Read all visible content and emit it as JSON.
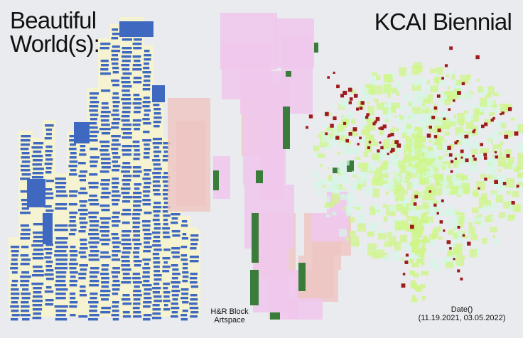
{
  "poster": {
    "title_left_line1": "Beautiful",
    "title_left_line2": "World(s):",
    "title_right": "KCAI Biennial",
    "venue_line1": "H&R Block",
    "venue_line2": "Artspace",
    "date_line1": "Date()",
    "date_line2": "(11.19.2021, 03.05.2022)"
  },
  "colors": {
    "background": "#e9ebee",
    "blue": "#3f68c0",
    "cream": "#f6f3cf",
    "pink": "#f0c8ec",
    "salmon": "#edc4c0",
    "green": "#3a7d3a",
    "lime": "#cff58a",
    "mint": "#d6f5e6",
    "red": "#9e1c1c"
  }
}
